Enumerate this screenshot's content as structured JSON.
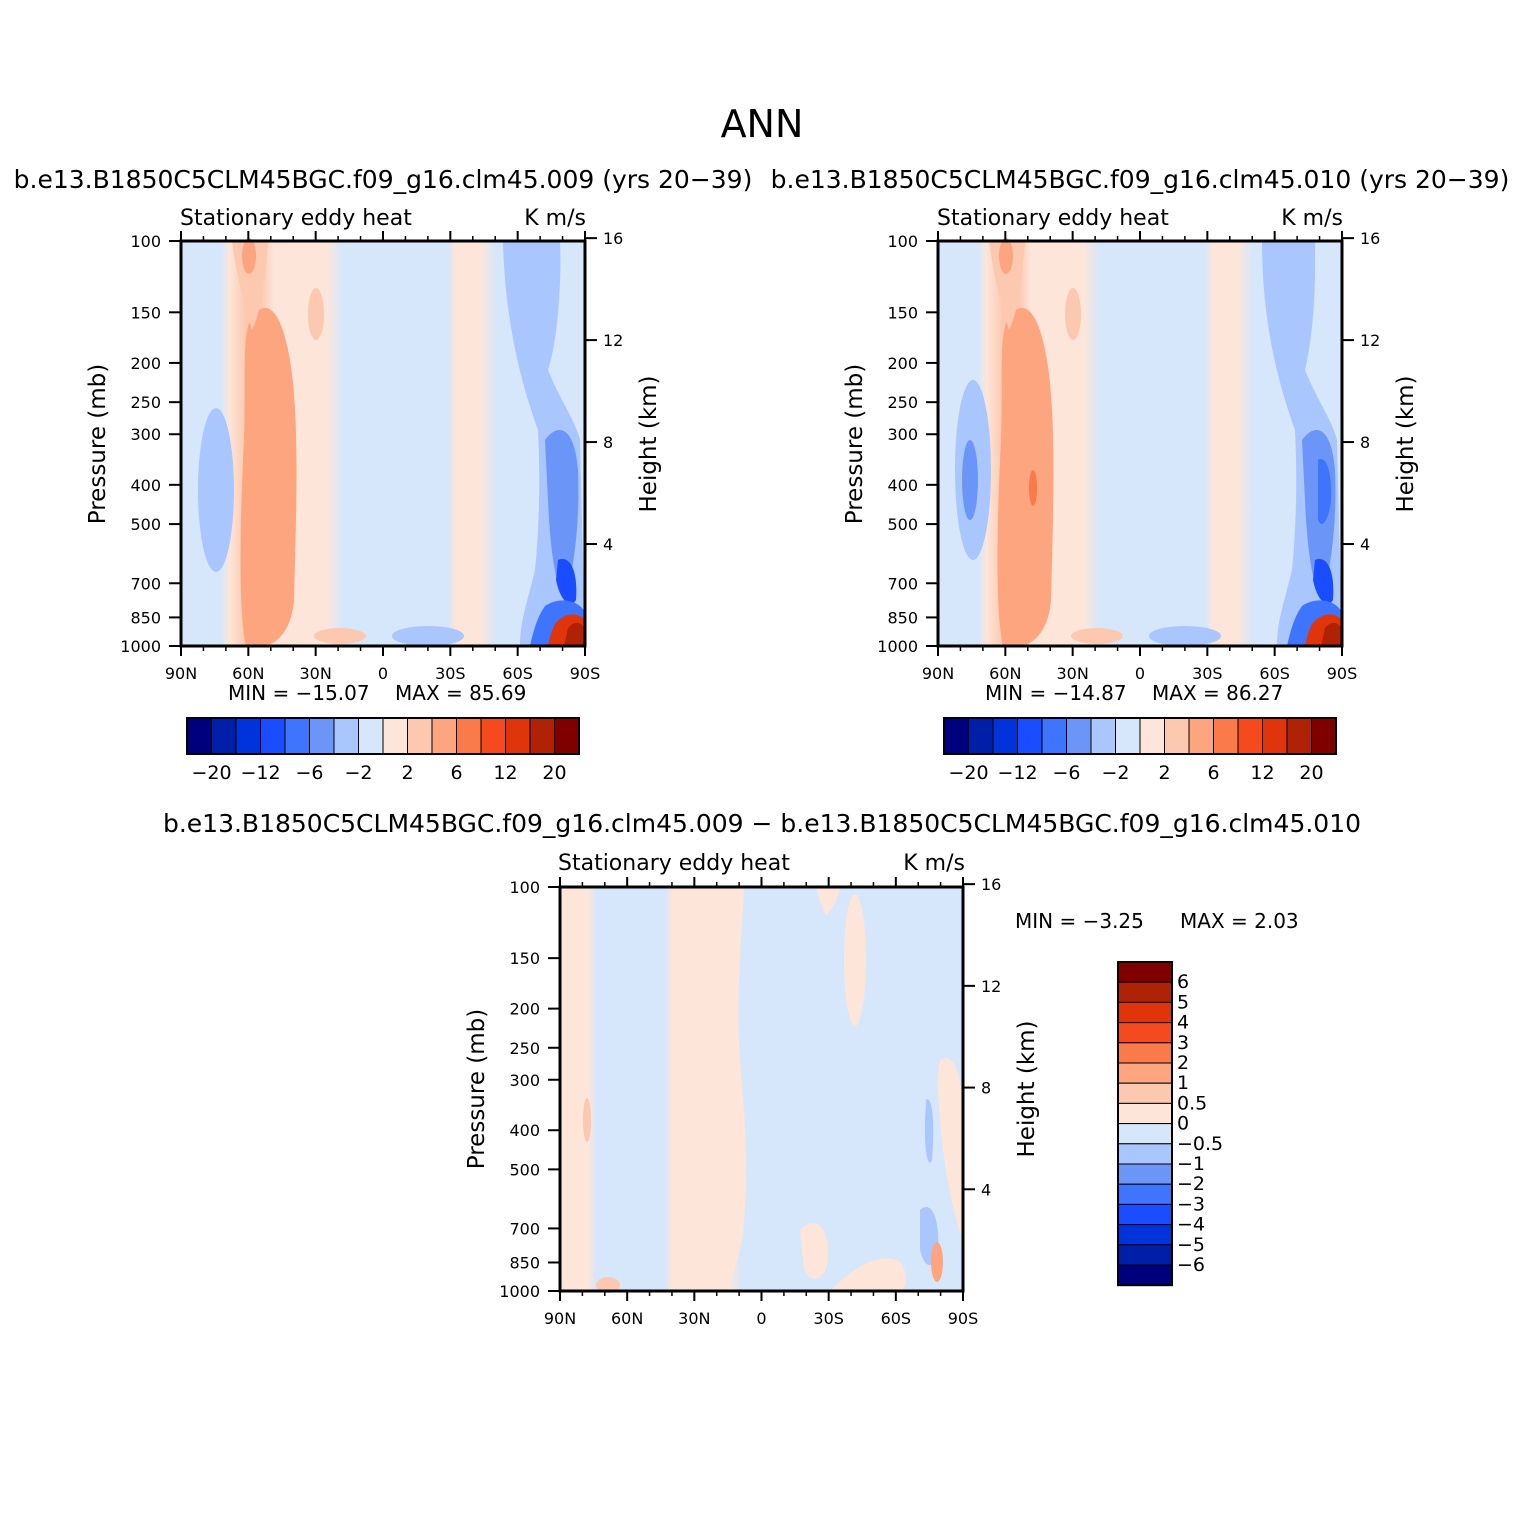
{
  "figure": {
    "title": "ANN"
  },
  "colors": {
    "diverging_scale_14": [
      "#00007f",
      "#001fa8",
      "#0033d9",
      "#1a4dff",
      "#3f74ff",
      "#6b96f7",
      "#a9c6ff",
      "#d6e6fb",
      "#fde6d9",
      "#fcc9b0",
      "#fca57f",
      "#fa7a4a",
      "#f44a1d",
      "#e0350b",
      "#b02205",
      "#800000"
    ],
    "diff_scale_16": [
      "#00007f",
      "#001fa8",
      "#0033d9",
      "#1a4dff",
      "#3f74ff",
      "#6b96f7",
      "#a9c6ff",
      "#d6e6fb",
      "#fde6d9",
      "#fcc9b0",
      "#fca57f",
      "#fa7a4a",
      "#f44a1d",
      "#e0350b",
      "#b02205",
      "#800000"
    ]
  },
  "chart_data": [
    {
      "type": "heatmap",
      "title": "b.e13.B1850C5CLM45BGC.f09_g16.clm45.009 (yrs 20−39)",
      "left_label": "Stationary eddy heat",
      "right_label": "K m/s",
      "xlabel": "",
      "ylabel": "Pressure (mb)",
      "ylabel_right": "Height (km)",
      "x_ticks": [
        "90N",
        "60N",
        "30N",
        "0",
        "30S",
        "60S",
        "90S"
      ],
      "x_tick_values": [
        90,
        60,
        30,
        0,
        -30,
        -60,
        -90
      ],
      "xlim": [
        90,
        -90
      ],
      "y_ticks": [
        "100",
        "150",
        "200",
        "250",
        "300",
        "400",
        "500",
        "700",
        "850",
        "1000"
      ],
      "y_tick_values": [
        100,
        150,
        200,
        250,
        300,
        400,
        500,
        700,
        850,
        1000
      ],
      "ylim": [
        1000,
        100
      ],
      "y_scale": "log",
      "y_right_ticks": [
        "4",
        "8",
        "12",
        "16"
      ],
      "y_right_values": [
        4,
        8,
        12,
        16
      ],
      "min_label": "MIN = −15.07",
      "max_label": "MAX = 85.69",
      "colorbar_ticks": [
        "−20",
        "−12",
        "−6",
        "−2",
        "2",
        "6",
        "12",
        "20"
      ],
      "field": [
        {
          "lat_from": 90,
          "lat_to": 78,
          "level": "weak_neg"
        },
        {
          "lat_from": 78,
          "lat_to": 72,
          "level": "neg_1"
        },
        {
          "lat_from": 72,
          "lat_to": 62,
          "level": "weak_pos"
        },
        {
          "lat_from": 62,
          "lat_to": 40,
          "level": "pos_3"
        },
        {
          "lat_from": 40,
          "lat_to": 5,
          "level": "weak_neg"
        },
        {
          "lat_from": 5,
          "lat_to": -35,
          "level": "weak_pos"
        },
        {
          "lat_from": -35,
          "lat_to": -55,
          "level": "weak_neg"
        },
        {
          "lat_from": -55,
          "lat_to": -75,
          "level": "neg_1"
        },
        {
          "lat_from": -75,
          "lat_to": -90,
          "level": "neg_4"
        }
      ]
    },
    {
      "type": "heatmap",
      "title": "b.e13.B1850C5CLM45BGC.f09_g16.clm45.010 (yrs 20−39)",
      "left_label": "Stationary eddy heat",
      "right_label": "K m/s",
      "xlabel": "",
      "ylabel": "Pressure (mb)",
      "ylabel_right": "Height (km)",
      "x_ticks": [
        "90N",
        "60N",
        "30N",
        "0",
        "30S",
        "60S",
        "90S"
      ],
      "x_tick_values": [
        90,
        60,
        30,
        0,
        -30,
        -60,
        -90
      ],
      "xlim": [
        90,
        -90
      ],
      "y_ticks": [
        "100",
        "150",
        "200",
        "250",
        "300",
        "400",
        "500",
        "700",
        "850",
        "1000"
      ],
      "y_tick_values": [
        100,
        150,
        200,
        250,
        300,
        400,
        500,
        700,
        850,
        1000
      ],
      "ylim": [
        1000,
        100
      ],
      "y_scale": "log",
      "y_right_ticks": [
        "4",
        "8",
        "12",
        "16"
      ],
      "y_right_values": [
        4,
        8,
        12,
        16
      ],
      "min_label": "MIN = −14.87",
      "max_label": "MAX = 86.27",
      "colorbar_ticks": [
        "−20",
        "−12",
        "−6",
        "−2",
        "2",
        "6",
        "12",
        "20"
      ]
    },
    {
      "type": "heatmap",
      "title": "b.e13.B1850C5CLM45BGC.f09_g16.clm45.009 − b.e13.B1850C5CLM45BGC.f09_g16.clm45.010",
      "left_label": "Stationary eddy heat",
      "right_label": "K m/s",
      "xlabel": "",
      "ylabel": "Pressure (mb)",
      "ylabel_right": "Height (km)",
      "x_ticks": [
        "90N",
        "60N",
        "30N",
        "0",
        "30S",
        "60S",
        "90S"
      ],
      "x_tick_values": [
        90,
        60,
        30,
        0,
        -30,
        -60,
        -90
      ],
      "xlim": [
        90,
        -90
      ],
      "y_ticks": [
        "100",
        "150",
        "200",
        "250",
        "300",
        "400",
        "500",
        "700",
        "850",
        "1000"
      ],
      "y_tick_values": [
        100,
        150,
        200,
        250,
        300,
        400,
        500,
        700,
        850,
        1000
      ],
      "ylim": [
        1000,
        100
      ],
      "y_scale": "log",
      "y_right_ticks": [
        "4",
        "8",
        "12",
        "16"
      ],
      "y_right_values": [
        4,
        8,
        12,
        16
      ],
      "min_label": "MIN = −3.25",
      "max_label": "MAX = 2.03",
      "colorbar_ticks": [
        "6",
        "5",
        "4",
        "3",
        "2",
        "1",
        "0.5",
        "0",
        "−0.5",
        "−1",
        "−2",
        "−3",
        "−4",
        "−5",
        "−6"
      ]
    }
  ]
}
